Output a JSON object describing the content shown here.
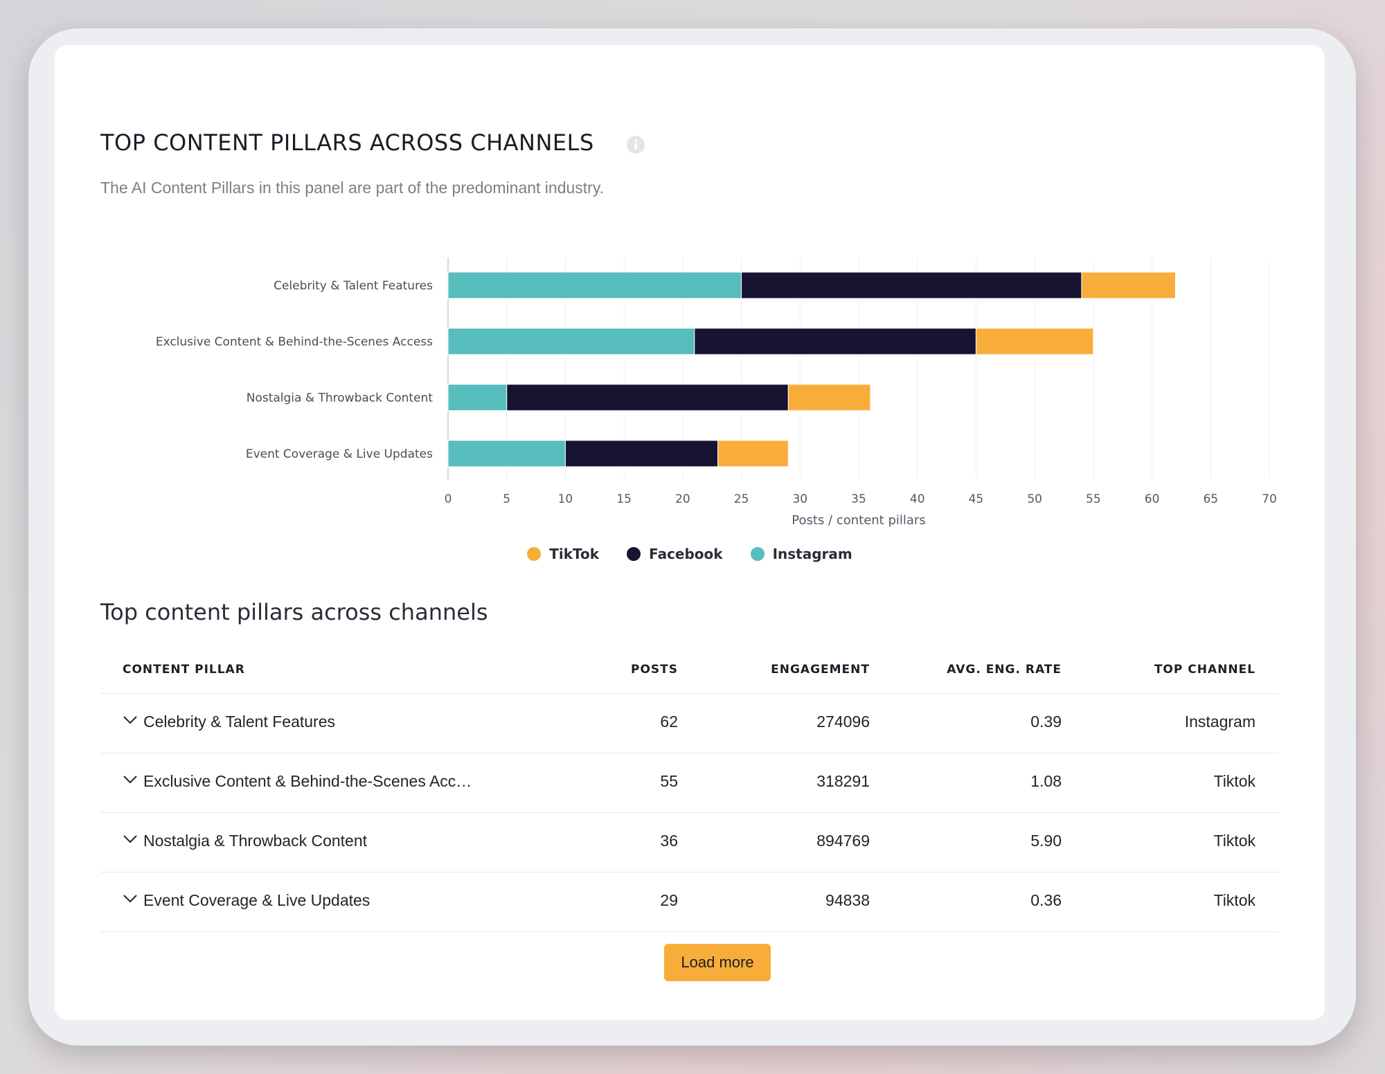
{
  "header": {
    "title": "TOP CONTENT PILLARS ACROSS CHANNELS",
    "subtitle": "The AI Content Pillars in this panel are part of the predominant industry.",
    "info_icon": "info-circle-icon"
  },
  "colors": {
    "instagram": "#57bdbd",
    "facebook": "#161430",
    "tiktok": "#f8ad3b"
  },
  "chart_data": {
    "type": "bar",
    "orientation": "horizontal",
    "stacked": true,
    "categories": [
      "Celebrity & Talent Features",
      "Exclusive Content & Behind-the-Scenes Access",
      "Nostalgia & Throwback Content",
      "Event Coverage & Live Updates"
    ],
    "series": [
      {
        "name": "Instagram",
        "values": [
          25,
          21,
          5,
          10
        ]
      },
      {
        "name": "Facebook",
        "values": [
          29,
          24,
          24,
          13
        ]
      },
      {
        "name": "TikTok",
        "values": [
          8,
          10,
          7,
          6
        ]
      }
    ],
    "xlabel": "Posts / content pillars",
    "xlim": [
      0,
      70
    ],
    "xticks": [
      0,
      5,
      10,
      15,
      20,
      25,
      30,
      35,
      40,
      45,
      50,
      55,
      60,
      65,
      70
    ],
    "grid": true,
    "legend": {
      "position": "bottom-center",
      "order": [
        "TikTok",
        "Facebook",
        "Instagram"
      ]
    }
  },
  "table": {
    "title": "Top content pillars across channels",
    "columns": [
      "CONTENT PILLAR",
      "POSTS",
      "ENGAGEMENT",
      "AVG. ENG. RATE",
      "TOP CHANNEL"
    ],
    "rows": [
      {
        "pillar": "Celebrity & Talent Features",
        "posts": "62",
        "engagement": "274096",
        "rate": "0.39",
        "channel": "Instagram"
      },
      {
        "pillar": "Exclusive Content & Behind-the-Scenes Acc…",
        "posts": "55",
        "engagement": "318291",
        "rate": "1.08",
        "channel": "Tiktok"
      },
      {
        "pillar": "Nostalgia & Throwback Content",
        "posts": "36",
        "engagement": "894769",
        "rate": "5.90",
        "channel": "Tiktok"
      },
      {
        "pillar": "Event Coverage & Live Updates",
        "posts": "29",
        "engagement": "94838",
        "rate": "0.36",
        "channel": "Tiktok"
      }
    ],
    "load_more_label": "Load more"
  }
}
